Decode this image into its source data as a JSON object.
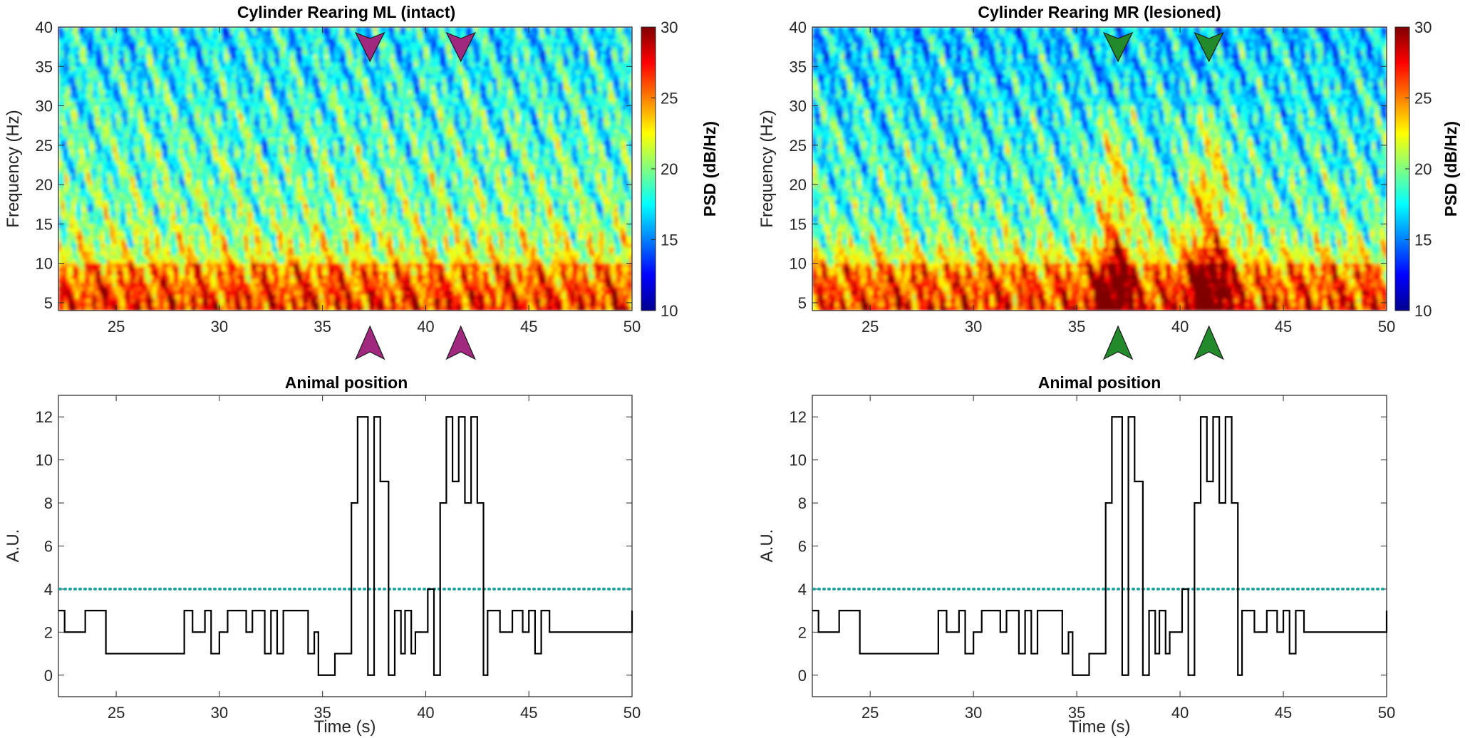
{
  "colors": {
    "marker_left": "#a0287e",
    "marker_right": "#238a2c",
    "threshold": "#20a4a0",
    "trace": "#000000"
  },
  "chart_data": [
    {
      "type": "heatmap",
      "id": "spec-left",
      "title": "Cylinder Rearing ML (intact)",
      "xlabel": "",
      "ylabel": "Frequency (Hz)",
      "xlim": [
        22.2,
        50
      ],
      "ylim": [
        4,
        40
      ],
      "xticks": [
        25,
        30,
        35,
        40,
        45
      ],
      "xtick_labels": [
        "25",
        "30",
        "35",
        "40",
        "45"
      ],
      "x_end_label": "50",
      "yticks": [
        5,
        10,
        15,
        20,
        25,
        30,
        35,
        40
      ],
      "ytick_labels": [
        "5",
        "10",
        "15",
        "20",
        "25",
        "30",
        "35",
        "40"
      ],
      "colorbar": {
        "label": "PSD (dB/Hz)",
        "range": [
          10,
          30
        ],
        "ticks": [
          10,
          15,
          20,
          25,
          30
        ],
        "tick_labels": [
          "10",
          "15",
          "20",
          "25",
          "30"
        ]
      },
      "markers": [
        37.3,
        41.7
      ],
      "marker_color": "magenta",
      "lesioned": false
    },
    {
      "type": "heatmap",
      "id": "spec-right",
      "title": "Cylinder Rearing MR (lesioned)",
      "xlabel": "",
      "ylabel": "Frequency (Hz)",
      "xlim": [
        22.2,
        50
      ],
      "ylim": [
        4,
        40
      ],
      "xticks": [
        25,
        30,
        35,
        40,
        45
      ],
      "xtick_labels": [
        "25",
        "30",
        "35",
        "40",
        "45"
      ],
      "x_end_label": "50",
      "yticks": [
        5,
        10,
        15,
        20,
        25,
        30,
        35,
        40
      ],
      "ytick_labels": [
        "5",
        "10",
        "15",
        "20",
        "25",
        "30",
        "35",
        "40"
      ],
      "colorbar": {
        "label": "PSD (dB/Hz)",
        "range": [
          10,
          30
        ],
        "ticks": [
          10,
          15,
          20,
          25,
          30
        ],
        "tick_labels": [
          "10",
          "15",
          "20",
          "25",
          "30"
        ]
      },
      "markers": [
        37.0,
        41.4
      ],
      "marker_color": "green",
      "lesioned": true
    },
    {
      "type": "line",
      "id": "pos-left",
      "title": "Animal position",
      "xlabel": "Time (s)",
      "ylabel": "A.U.",
      "xlim": [
        22.2,
        50
      ],
      "ylim": [
        -1,
        13
      ],
      "xticks": [
        25,
        30,
        35,
        40,
        45,
        50
      ],
      "xtick_labels": [
        "25",
        "30",
        "35",
        "40",
        "45",
        "50"
      ],
      "yticks": [
        0,
        2,
        4,
        6,
        8,
        10,
        12
      ],
      "ytick_labels": [
        "0",
        "2",
        "4",
        "6",
        "8",
        "10",
        "12"
      ],
      "threshold": 4,
      "x": [
        22.2,
        22.5,
        23.5,
        24.5,
        28.3,
        28.7,
        29.3,
        29.6,
        30.0,
        30.4,
        31.3,
        31.6,
        32.2,
        32.5,
        32.8,
        33.1,
        34.3,
        34.6,
        34.8,
        35.6,
        36.4,
        36.7,
        37.2,
        37.5,
        37.8,
        38.2,
        38.5,
        38.8,
        39.0,
        39.3,
        39.5,
        40.1,
        40.4,
        40.7,
        41.0,
        41.3,
        41.6,
        41.9,
        42.2,
        42.5,
        42.8,
        43.0,
        43.6,
        44.2,
        44.7,
        45.0,
        45.3,
        45.6,
        46.0,
        50
      ],
      "values": [
        3,
        2,
        3,
        1,
        3,
        2,
        3,
        1,
        2,
        3,
        2,
        3,
        1,
        3,
        1,
        3,
        1,
        2,
        0,
        1,
        8,
        12,
        0,
        12,
        9,
        0,
        3,
        1,
        3,
        1,
        2,
        4,
        0,
        8,
        12,
        9,
        12,
        8,
        12,
        8,
        0,
        3,
        2,
        3,
        2,
        3,
        1,
        3,
        2,
        3
      ]
    },
    {
      "type": "line",
      "id": "pos-right",
      "title": "Animal position",
      "xlabel": "Time (s)",
      "ylabel": "A.U.",
      "xlim": [
        22.2,
        50
      ],
      "ylim": [
        -1,
        13
      ],
      "xticks": [
        25,
        30,
        35,
        40,
        45,
        50
      ],
      "xtick_labels": [
        "25",
        "30",
        "35",
        "40",
        "45",
        "50"
      ],
      "yticks": [
        0,
        2,
        4,
        6,
        8,
        10,
        12
      ],
      "ytick_labels": [
        "0",
        "2",
        "4",
        "6",
        "8",
        "10",
        "12"
      ],
      "threshold": 4,
      "x": [
        22.2,
        22.5,
        23.5,
        24.5,
        28.3,
        28.7,
        29.3,
        29.6,
        30.0,
        30.4,
        31.3,
        31.6,
        32.2,
        32.5,
        32.8,
        33.1,
        34.3,
        34.6,
        34.8,
        35.6,
        36.4,
        36.7,
        37.2,
        37.5,
        37.8,
        38.2,
        38.5,
        38.8,
        39.0,
        39.3,
        39.5,
        40.1,
        40.4,
        40.7,
        41.0,
        41.3,
        41.6,
        41.9,
        42.2,
        42.5,
        42.8,
        43.0,
        43.6,
        44.2,
        44.7,
        45.0,
        45.3,
        45.6,
        46.0,
        50
      ],
      "values": [
        3,
        2,
        3,
        1,
        3,
        2,
        3,
        1,
        2,
        3,
        2,
        3,
        1,
        3,
        1,
        3,
        1,
        2,
        0,
        1,
        8,
        12,
        0,
        12,
        9,
        0,
        3,
        1,
        3,
        1,
        2,
        4,
        0,
        8,
        12,
        9,
        12,
        8,
        12,
        8,
        0,
        3,
        2,
        3,
        2,
        3,
        1,
        3,
        2,
        3
      ]
    }
  ]
}
